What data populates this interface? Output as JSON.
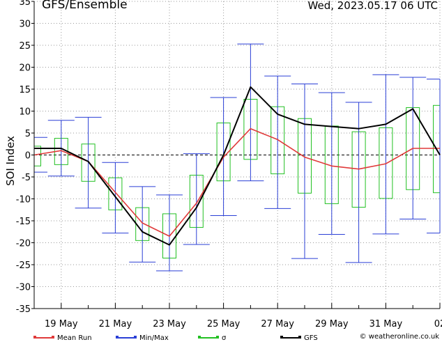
{
  "header": {
    "title": "GFS/Ensemble",
    "date": "Wed, 2023.05.17   06 UTC"
  },
  "legend": [
    {
      "label": "Mean Run",
      "color": "#e03a3a"
    },
    {
      "label": "Min/Max",
      "color": "#2a3fd6"
    },
    {
      "label": "σ",
      "color": "#22c022"
    },
    {
      "label": "GFS",
      "color": "#000000"
    }
  ],
  "credit": "© weatheronline.co.uk",
  "chart_data": {
    "type": "line",
    "ylabel": "SOI Index",
    "ylim": [
      -35,
      35
    ],
    "yticks": [
      -35,
      -30,
      -25,
      -20,
      -15,
      -10,
      -5,
      0,
      5,
      10,
      15,
      20,
      25,
      30,
      35
    ],
    "xlim": [
      0,
      15
    ],
    "xticks": [
      {
        "x": 1,
        "label": "19 May"
      },
      {
        "x": 3,
        "label": "21 May"
      },
      {
        "x": 5,
        "label": "23 May"
      },
      {
        "x": 7,
        "label": "25 May"
      },
      {
        "x": 9,
        "label": "27 May"
      },
      {
        "x": 11,
        "label": "29 May"
      },
      {
        "x": 13,
        "label": "31 May"
      },
      {
        "x": 15,
        "label": "02"
      }
    ],
    "grid": true,
    "series": [
      {
        "name": "Mean Run",
        "color": "#e03a3a",
        "x": [
          0,
          1,
          2,
          3,
          4,
          5,
          6,
          7,
          8,
          9,
          10,
          11,
          12,
          13,
          14,
          15
        ],
        "values": [
          0,
          1,
          -1.5,
          -8.5,
          -15.5,
          -18.5,
          -11,
          -0.5,
          6,
          3.5,
          -0.5,
          -2.5,
          -3.2,
          -2,
          1.5,
          1.5
        ]
      },
      {
        "name": "GFS",
        "color": "#000000",
        "x": [
          0,
          1,
          2,
          3,
          4,
          5,
          6,
          7,
          8,
          9,
          10,
          11,
          12,
          13,
          14,
          15
        ],
        "values": [
          1.5,
          1.5,
          -1.5,
          -9.5,
          -17.5,
          -20.5,
          -12,
          0,
          15.5,
          9.3,
          7,
          6.5,
          6,
          7,
          10.5,
          0
        ]
      }
    ],
    "sigma": [
      {
        "x": 0,
        "low": -2.5,
        "high": 2
      },
      {
        "x": 1,
        "low": -2.2,
        "high": 3.8
      },
      {
        "x": 2,
        "low": -6,
        "high": 2.5
      },
      {
        "x": 3,
        "low": -12.5,
        "high": -5.2
      },
      {
        "x": 4,
        "low": -19.5,
        "high": -12
      },
      {
        "x": 5,
        "low": -23.5,
        "high": -13.4
      },
      {
        "x": 6,
        "low": -16.5,
        "high": -4.6
      },
      {
        "x": 7,
        "low": -5.9,
        "high": 7.3
      },
      {
        "x": 8,
        "low": -1,
        "high": 12.7
      },
      {
        "x": 9,
        "low": -4.3,
        "high": 11
      },
      {
        "x": 10,
        "low": -8.7,
        "high": 8.3
      },
      {
        "x": 11,
        "low": -11.1,
        "high": 6.6
      },
      {
        "x": 12,
        "low": -11.9,
        "high": 5.3
      },
      {
        "x": 13,
        "low": -9.9,
        "high": 6.2
      },
      {
        "x": 14,
        "low": -7.9,
        "high": 10.8
      },
      {
        "x": 15,
        "low": -8.6,
        "high": 11.3
      }
    ],
    "minmax": [
      {
        "x": 0,
        "low": -3.9,
        "high": 4
      },
      {
        "x": 1,
        "low": -4.8,
        "high": 7.9
      },
      {
        "x": 2,
        "low": -12.1,
        "high": 8.6
      },
      {
        "x": 3,
        "low": -17.8,
        "high": -1.7
      },
      {
        "x": 4,
        "low": -24.4,
        "high": -7.2
      },
      {
        "x": 5,
        "low": -26.4,
        "high": -9.1
      },
      {
        "x": 6,
        "low": -20.4,
        "high": 0.3
      },
      {
        "x": 7,
        "low": -13.8,
        "high": 13.1
      },
      {
        "x": 8,
        "low": -5.9,
        "high": 25.3
      },
      {
        "x": 9,
        "low": -12.2,
        "high": 18
      },
      {
        "x": 10,
        "low": -23.6,
        "high": 16.2
      },
      {
        "x": 11,
        "low": -18.1,
        "high": 14.2
      },
      {
        "x": 12,
        "low": -24.5,
        "high": 12
      },
      {
        "x": 13,
        "low": -18,
        "high": 18.3
      },
      {
        "x": 14,
        "low": -14.6,
        "high": 17.7
      },
      {
        "x": 15,
        "low": -17.8,
        "high": 17.3
      }
    ]
  }
}
